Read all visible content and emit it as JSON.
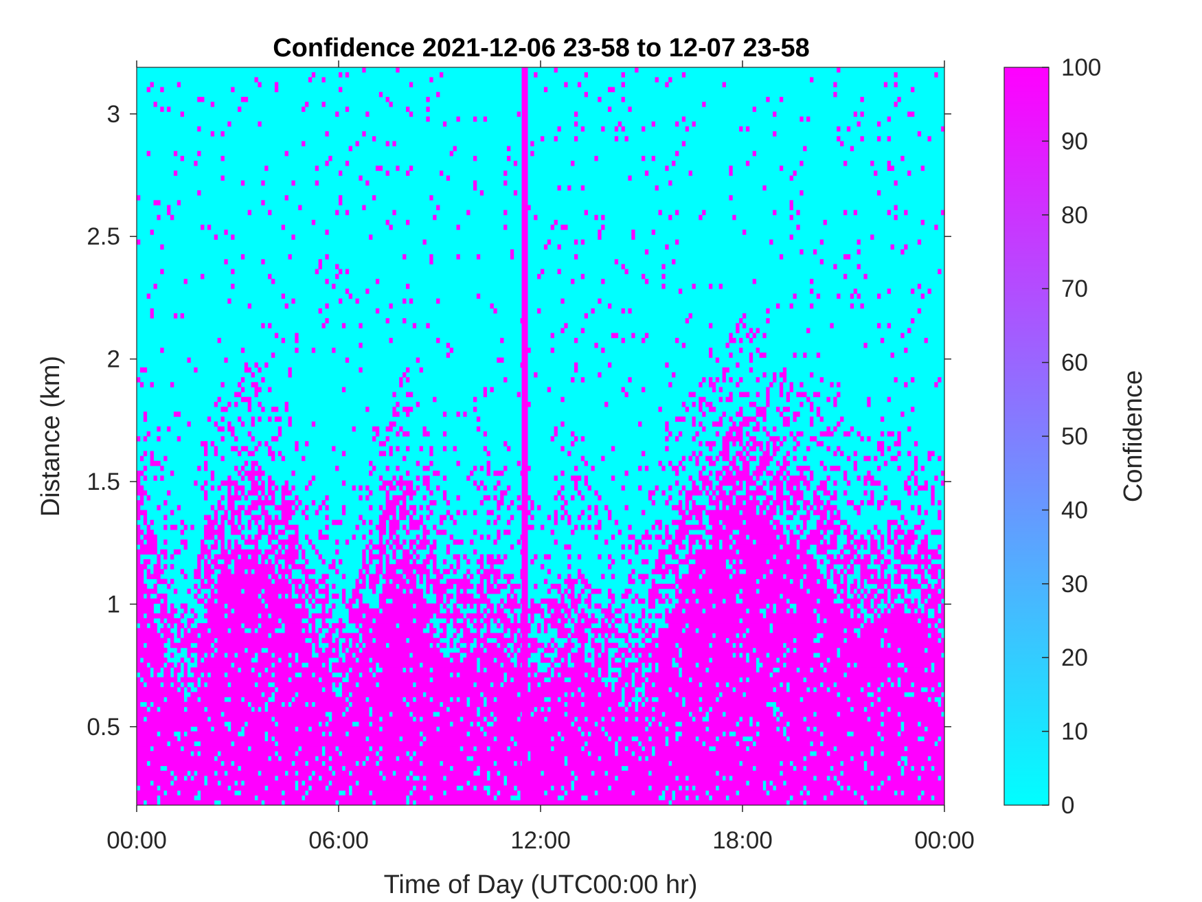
{
  "chart_data": {
    "type": "heatmap",
    "title": "Confidence 2021-12-06 23-58 to 12-07 23-58",
    "xlabel": "Time of Day (UTC00:00 hr)",
    "ylabel": "Distance (km)",
    "xlim_hours": [
      0,
      24
    ],
    "ylim_km": [
      0.18,
      3.19
    ],
    "x_ticks": [
      {
        "hour": 0,
        "label": "00:00"
      },
      {
        "hour": 6,
        "label": "06:00"
      },
      {
        "hour": 12,
        "label": "12:00"
      },
      {
        "hour": 18,
        "label": "18:00"
      },
      {
        "hour": 24,
        "label": "00:00"
      }
    ],
    "y_ticks": [
      {
        "value": 0.5,
        "label": "0.5"
      },
      {
        "value": 1,
        "label": "1"
      },
      {
        "value": 1.5,
        "label": "1.5"
      },
      {
        "value": 2,
        "label": "2"
      },
      {
        "value": 2.5,
        "label": "2.5"
      },
      {
        "value": 3,
        "label": "3"
      }
    ],
    "colorbar": {
      "label": "Confidence",
      "range": [
        0,
        100
      ],
      "ticks": [
        "0",
        "10",
        "20",
        "30",
        "40",
        "50",
        "60",
        "70",
        "80",
        "90",
        "100"
      ],
      "color_low": "#00ffff",
      "color_high": "#ff00ff"
    },
    "grid": false,
    "legend": "none",
    "high_confidence_top_profile_km": {
      "hours": [
        0,
        0.5,
        1,
        1.5,
        2,
        2.5,
        3,
        3.5,
        4,
        4.5,
        5,
        5.5,
        6,
        6.5,
        7,
        7.5,
        8,
        8.5,
        9,
        9.5,
        10,
        10.5,
        11,
        11.5,
        12,
        12.5,
        13,
        13.5,
        14,
        14.5,
        15,
        15.5,
        16,
        16.5,
        17,
        17.5,
        18,
        18.5,
        19,
        19.5,
        20,
        20.5,
        21,
        21.5,
        22,
        22.5,
        23,
        23.5,
        24
      ],
      "km": [
        1.6,
        1.3,
        1.05,
        0.95,
        1.3,
        1.5,
        1.55,
        1.6,
        1.5,
        1.45,
        1.2,
        1.1,
        0.95,
        1.1,
        1.25,
        1.5,
        1.55,
        1.4,
        1.15,
        1.1,
        1.15,
        1.2,
        1.15,
        1.05,
        1.0,
        1.05,
        1.15,
        1.1,
        1.0,
        0.9,
        0.95,
        1.2,
        1.35,
        1.5,
        1.6,
        1.7,
        1.8,
        1.75,
        1.65,
        1.6,
        1.55,
        1.45,
        1.35,
        1.25,
        1.3,
        1.35,
        1.3,
        1.25,
        1.2
      ]
    },
    "high_confidence_full_column_hours": [
      11.5
    ]
  }
}
